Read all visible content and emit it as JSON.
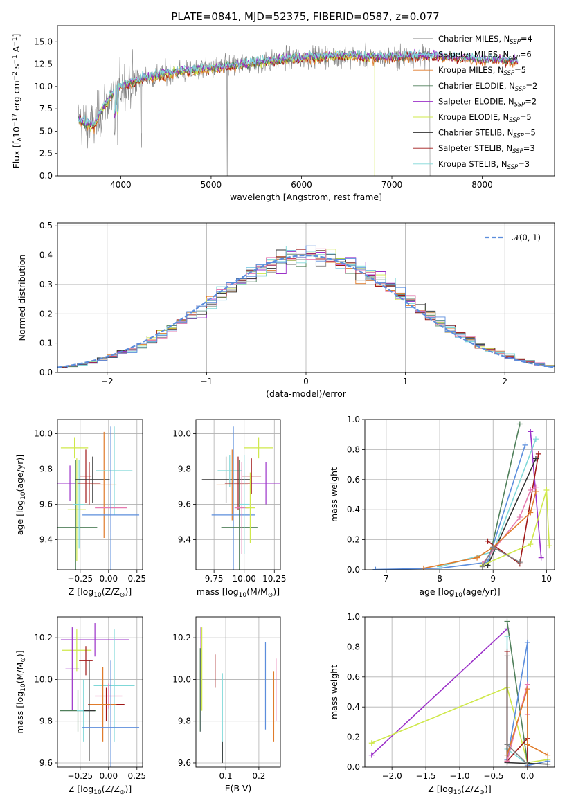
{
  "title": "PLATE=0841, MJD=52375, FIBERID=0587, z=0.077",
  "colors": {
    "chabrier_miles": "#808080",
    "salpeter_miles": "#7ec8e3",
    "kroupa_miles": "#e07b2a",
    "chabrier_elodie": "#4f7f5a",
    "salpeter_elodie": "#9b30c8",
    "kroupa_elodie": "#cfe84a",
    "chabrier_stelib": "#333333",
    "salpeter_stelib": "#a01818",
    "kroupa_stelib": "#7fd8d8",
    "pink": "#e67ab0",
    "blue": "#5b8ddc",
    "normal": "#5b8ddc"
  },
  "chart_data": [
    {
      "id": "spectrum",
      "type": "line",
      "xlabel": "wavelength [Angstrom, rest frame]",
      "ylabel": "Flux [f_λ 10^-17 erg cm^-2 s^-1 A^-1]",
      "xlim": [
        3300,
        8800
      ],
      "ylim": [
        0,
        16.8
      ],
      "xticks": [
        4000,
        5000,
        6000,
        7000,
        8000
      ],
      "yticks": [
        0.0,
        2.5,
        5.0,
        7.5,
        10.0,
        12.5,
        15.0
      ],
      "grid": false,
      "legend_position": "top-right",
      "continuum": [
        [
          3530,
          6.2
        ],
        [
          3700,
          5.5
        ],
        [
          3800,
          7.5
        ],
        [
          3900,
          9.0
        ],
        [
          4000,
          10.0
        ],
        [
          4300,
          11.0
        ],
        [
          4600,
          11.6
        ],
        [
          5000,
          12.0
        ],
        [
          5500,
          12.6
        ],
        [
          6000,
          13.2
        ],
        [
          6500,
          13.4
        ],
        [
          6800,
          13.2
        ],
        [
          7000,
          13.3
        ],
        [
          7400,
          13.4
        ],
        [
          7600,
          13.2
        ],
        [
          8000,
          13.0
        ],
        [
          8400,
          12.8
        ]
      ],
      "series": [
        {
          "name_main": "Chabrier MILES, N",
          "name_sub": "SSP",
          "name_suffix": "=4",
          "color_key": "chabrier_miles"
        },
        {
          "name_main": "Salpeter MILES, N",
          "name_sub": "SSP",
          "name_suffix": "=6",
          "color_key": "salpeter_miles"
        },
        {
          "name_main": "Kroupa MILES, N",
          "name_sub": "SSP",
          "name_suffix": "=5",
          "color_key": "kroupa_miles"
        },
        {
          "name_main": "Chabrier ELODIE, N",
          "name_sub": "SSP",
          "name_suffix": "=2",
          "color_key": "chabrier_elodie"
        },
        {
          "name_main": "Salpeter ELODIE, N",
          "name_sub": "SSP",
          "name_suffix": "=2",
          "color_key": "salpeter_elodie"
        },
        {
          "name_main": "Kroupa ELODIE, N",
          "name_sub": "SSP",
          "name_suffix": "=5",
          "color_key": "kroupa_elodie"
        },
        {
          "name_main": "Chabrier STELIB, N",
          "name_sub": "SSP",
          "name_suffix": "=5",
          "color_key": "chabrier_stelib"
        },
        {
          "name_main": "Salpeter STELIB, N",
          "name_sub": "SSP",
          "name_suffix": "=3",
          "color_key": "salpeter_stelib"
        },
        {
          "name_main": "Kroupa STELIB, N",
          "name_sub": "SSP",
          "name_suffix": "=3",
          "color_key": "kroupa_stelib"
        }
      ]
    },
    {
      "id": "residuals",
      "type": "line",
      "xlabel": "(data-model)/error",
      "ylabel": "Normed distribution",
      "xlim": [
        -2.5,
        2.5
      ],
      "ylim": [
        0,
        0.51
      ],
      "xticks": [
        -2,
        -1,
        0,
        1,
        2
      ],
      "yticks": [
        0.0,
        0.1,
        0.2,
        0.3,
        0.4,
        0.5
      ],
      "grid": true,
      "legend_position": "top-right",
      "legend_label": "𝒩(0, 1)",
      "bin_width": 0.1,
      "series_colors": [
        "chabrier_miles",
        "salpeter_miles",
        "kroupa_miles",
        "chabrier_elodie",
        "salpeter_elodie",
        "kroupa_elodie",
        "chabrier_stelib",
        "salpeter_stelib",
        "kroupa_stelib",
        "pink",
        "blue"
      ]
    },
    {
      "id": "age_vs_Z",
      "type": "scatter",
      "xlabel_pre": "Z [log",
      "xlabel_sub": "10",
      "xlabel_post": "(Z/Z",
      "xlabel_end": ")]",
      "ylabel_pre": "age  [log",
      "ylabel_sub": "10",
      "ylabel_post": "(age/yr)]",
      "xlim": [
        -0.45,
        0.3
      ],
      "ylim": [
        9.23,
        10.08
      ],
      "xticks": [
        -0.25,
        0.0,
        0.25
      ],
      "xtick_labels": [
        "−0.25",
        "0.00",
        "0.25"
      ],
      "yticks": [
        9.4,
        9.6,
        9.8,
        10.0
      ],
      "grid": true,
      "points": [
        {
          "x": -0.3,
          "y": 9.92,
          "xerr": 0.12,
          "yerr": 0.06,
          "color_key": "kroupa_elodie"
        },
        {
          "x": -0.34,
          "y": 9.72,
          "xerr": 0.22,
          "yerr": 0.1,
          "color_key": "salpeter_elodie"
        },
        {
          "x": -0.28,
          "y": 9.57,
          "xerr": 0.08,
          "yerr": 0.29,
          "color_key": "kroupa_elodie"
        },
        {
          "x": -0.29,
          "y": 9.47,
          "xerr": 0.19,
          "yerr": 0.38,
          "color_key": "chabrier_elodie"
        },
        {
          "x": -0.26,
          "y": 9.6,
          "xerr": 0.05,
          "yerr": 0.25,
          "color_key": "kroupa_stelib"
        },
        {
          "x": -0.2,
          "y": 9.76,
          "xerr": 0.05,
          "yerr": 0.15,
          "color_key": "salpeter_stelib"
        },
        {
          "x": -0.14,
          "y": 9.74,
          "xerr": 0.15,
          "yerr": 0.13,
          "color_key": "chabrier_stelib"
        },
        {
          "x": -0.17,
          "y": 9.72,
          "xerr": 0.1,
          "yerr": 0.12,
          "color_key": "salpeter_stelib"
        },
        {
          "x": -0.04,
          "y": 9.71,
          "xerr": 0.11,
          "yerr": 0.3,
          "color_key": "kroupa_miles"
        },
        {
          "x": 0.05,
          "y": 9.79,
          "xerr": 0.16,
          "yerr": 0.25,
          "color_key": "kroupa_stelib"
        },
        {
          "x": 0.02,
          "y": 9.58,
          "xerr": 0.14,
          "yerr": 0.14,
          "color_key": "pink"
        },
        {
          "x": 0.02,
          "y": 9.54,
          "xerr": 0.25,
          "yerr": 0.5,
          "color_key": "blue"
        }
      ]
    },
    {
      "id": "age_vs_mass",
      "type": "scatter",
      "xlabel_pre": "mass [log",
      "xlabel_sub": "10",
      "xlabel_post": "(M/M",
      "xlabel_end": ")]",
      "xlim": [
        9.6,
        10.3
      ],
      "ylim": [
        9.23,
        10.08
      ],
      "xticks": [
        9.75,
        10.0,
        10.25
      ],
      "xtick_labels": [
        "9.75",
        "10.00",
        "10.25"
      ],
      "yticks": [
        9.4,
        9.6,
        9.8,
        10.0
      ],
      "grid": true,
      "points": [
        {
          "x": 10.12,
          "y": 9.92,
          "xerr": 0.12,
          "yerr": 0.06,
          "color_key": "kroupa_elodie"
        },
        {
          "x": 10.18,
          "y": 9.72,
          "xerr": 0.12,
          "yerr": 0.12,
          "color_key": "salpeter_elodie"
        },
        {
          "x": 9.85,
          "y": 9.74,
          "xerr": 0.2,
          "yerr": 0.13,
          "color_key": "chabrier_stelib"
        },
        {
          "x": 9.88,
          "y": 9.79,
          "xerr": 0.1,
          "yerr": 0.09,
          "color_key": "kroupa_stelib"
        },
        {
          "x": 9.9,
          "y": 9.71,
          "xerr": 0.13,
          "yerr": 0.2,
          "color_key": "kroupa_miles"
        },
        {
          "x": 9.95,
          "y": 9.72,
          "xerr": 0.11,
          "yerr": 0.15,
          "color_key": "salpeter_stelib"
        },
        {
          "x": 9.91,
          "y": 9.54,
          "xerr": 0.18,
          "yerr": 0.5,
          "color_key": "blue"
        },
        {
          "x": 9.96,
          "y": 9.47,
          "xerr": 0.15,
          "yerr": 0.38,
          "color_key": "chabrier_elodie"
        },
        {
          "x": 10.06,
          "y": 9.76,
          "xerr": 0.08,
          "yerr": 0.1,
          "color_key": "salpeter_stelib"
        },
        {
          "x": 9.98,
          "y": 9.58,
          "xerr": 0.06,
          "yerr": 0.26,
          "color_key": "pink"
        },
        {
          "x": 10.0,
          "y": 9.6,
          "xerr": 0.04,
          "yerr": 0.28,
          "color_key": "kroupa_stelib"
        },
        {
          "x": 10.05,
          "y": 9.58,
          "xerr": 0.04,
          "yerr": 0.2,
          "color_key": "kroupa_elodie"
        }
      ]
    },
    {
      "id": "weight_vs_age",
      "type": "line",
      "xlabel_pre": "age  [log",
      "xlabel_sub": "10",
      "xlabel_post": "(age/yr)]",
      "ylabel": "mass weight",
      "xlim": [
        6.6,
        10.15
      ],
      "ylim": [
        0,
        1.0
      ],
      "xticks": [
        7,
        8,
        9,
        10
      ],
      "yticks": [
        0.0,
        0.2,
        0.4,
        0.6,
        0.8,
        1.0
      ],
      "grid": true,
      "series": [
        {
          "color_key": "chabrier_elodie",
          "x": [
            8.9,
            9.5
          ],
          "y": [
            0.03,
            0.97
          ]
        },
        {
          "color_key": "blue",
          "x": [
            6.8,
            8.0,
            8.9,
            9.6
          ],
          "y": [
            0.002,
            0.01,
            0.05,
            0.83
          ]
        },
        {
          "color_key": "kroupa_stelib",
          "x": [
            8.0,
            9.0,
            9.8
          ],
          "y": [
            0.02,
            0.12,
            0.87
          ]
        },
        {
          "color_key": "salpeter_elodie",
          "x": [
            9.7,
            9.9
          ],
          "y": [
            0.92,
            0.08
          ]
        },
        {
          "color_key": "salpeter_stelib",
          "x": [
            8.9,
            9.5,
            9.85
          ],
          "y": [
            0.19,
            0.04,
            0.77
          ]
        },
        {
          "color_key": "chabrier_stelib",
          "x": [
            8.9,
            9.8
          ],
          "y": [
            0.03,
            0.74
          ]
        },
        {
          "color_key": "pink",
          "x": [
            8.8,
            9.5,
            9.7,
            9.8
          ],
          "y": [
            0.04,
            0.35,
            0.53,
            0.55
          ]
        },
        {
          "color_key": "kroupa_miles",
          "x": [
            7.7,
            8.7,
            9.0,
            9.7,
            9.8
          ],
          "y": [
            0.01,
            0.08,
            0.15,
            0.38,
            0.52
          ]
        },
        {
          "color_key": "kroupa_elodie",
          "x": [
            8.8,
            9.7,
            10.0,
            10.05
          ],
          "y": [
            0.03,
            0.17,
            0.53,
            0.16
          ]
        },
        {
          "color_key": "chabrier_miles",
          "x": [
            8.8,
            9.0,
            9.5
          ],
          "y": [
            0.02,
            0.15,
            0.05
          ]
        }
      ]
    },
    {
      "id": "mass_vs_Z",
      "type": "scatter",
      "xlabel_pre": "Z [log",
      "xlabel_sub": "10",
      "xlabel_post": "(Z/Z",
      "xlabel_end": ")]",
      "ylabel_pre": "mass [log",
      "ylabel_sub": "10",
      "ylabel_post": "(M/M",
      "ylabel_end": ")]",
      "xlim": [
        -0.45,
        0.3
      ],
      "ylim": [
        9.58,
        10.3
      ],
      "xticks": [
        -0.25,
        0.0,
        0.25
      ],
      "xtick_labels": [
        "−0.25",
        "0.00",
        "0.25"
      ],
      "yticks": [
        9.6,
        9.8,
        10.0,
        10.2
      ],
      "grid": true,
      "points": [
        {
          "x": -0.12,
          "y": 10.19,
          "xerr": 0.3,
          "yerr": 0.08,
          "color_key": "salpeter_elodie"
        },
        {
          "x": -0.28,
          "y": 10.14,
          "xerr": 0.13,
          "yerr": 0.1,
          "color_key": "kroupa_elodie"
        },
        {
          "x": -0.32,
          "y": 10.05,
          "xerr": 0.06,
          "yerr": 0.2,
          "color_key": "salpeter_elodie"
        },
        {
          "x": -0.2,
          "y": 10.09,
          "xerr": 0.06,
          "yerr": 0.07,
          "color_key": "salpeter_stelib"
        },
        {
          "x": 0.05,
          "y": 9.97,
          "xerr": 0.18,
          "yerr": 0.27,
          "color_key": "kroupa_stelib"
        },
        {
          "x": 0.0,
          "y": 9.92,
          "xerr": 0.12,
          "yerr": 0.06,
          "color_key": "pink"
        },
        {
          "x": -0.02,
          "y": 9.88,
          "xerr": 0.16,
          "yerr": 0.08,
          "color_key": "salpeter_stelib"
        },
        {
          "x": -0.05,
          "y": 9.88,
          "xerr": 0.12,
          "yerr": 0.18,
          "color_key": "kroupa_miles"
        },
        {
          "x": -0.27,
          "y": 9.85,
          "xerr": 0.16,
          "yerr": 0.1,
          "color_key": "chabrier_elodie"
        },
        {
          "x": -0.22,
          "y": 9.85,
          "xerr": 0.06,
          "yerr": 0.15,
          "color_key": "kroupa_stelib"
        },
        {
          "x": -0.17,
          "y": 9.85,
          "xerr": 0.05,
          "yerr": 0.24,
          "color_key": "chabrier_stelib"
        },
        {
          "x": 0.02,
          "y": 9.77,
          "xerr": 0.25,
          "yerr": 0.32,
          "color_key": "blue"
        }
      ]
    },
    {
      "id": "mass_vs_ebv",
      "type": "scatter",
      "xlabel": "E(B-V)",
      "xlim": [
        0.01,
        0.265
      ],
      "ylim": [
        9.58,
        10.3
      ],
      "xticks": [
        0.1,
        0.2
      ],
      "xtick_labels": [
        "0.1",
        "0.2"
      ],
      "yticks": [
        9.6,
        9.8,
        10.0,
        10.2
      ],
      "grid": true,
      "points": [
        {
          "x": 0.025,
          "y": 10.0,
          "yerr": 0.25,
          "color_key": "salpeter_elodie"
        },
        {
          "x": 0.023,
          "y": 9.95,
          "yerr": 0.2,
          "color_key": "chabrier_elodie"
        },
        {
          "x": 0.028,
          "y": 10.05,
          "yerr": 0.2,
          "color_key": "kroupa_elodie"
        },
        {
          "x": 0.068,
          "y": 10.04,
          "yerr": 0.08,
          "color_key": "salpeter_stelib"
        },
        {
          "x": 0.09,
          "y": 9.82,
          "yerr": 0.21,
          "color_key": "kroupa_stelib"
        },
        {
          "x": 0.09,
          "y": 9.65,
          "yerr": 0.05,
          "color_key": "chabrier_stelib"
        },
        {
          "x": 0.22,
          "y": 9.97,
          "yerr": 0.21,
          "color_key": "blue"
        },
        {
          "x": 0.245,
          "y": 9.87,
          "yerr": 0.17,
          "color_key": "kroupa_miles"
        },
        {
          "x": 0.252,
          "y": 9.95,
          "yerr": 0.15,
          "color_key": "pink"
        }
      ]
    },
    {
      "id": "weight_vs_Z",
      "type": "line",
      "xlabel_pre": "Z [log",
      "xlabel_sub": "10",
      "xlabel_post": "(Z/Z",
      "xlabel_end": ")]",
      "ylabel": "mass weight",
      "xlim": [
        -2.4,
        0.4
      ],
      "ylim": [
        0,
        1.0
      ],
      "xticks": [
        -2.0,
        -1.5,
        -1.0,
        -0.5,
        0.0
      ],
      "xtick_labels": [
        "−2.0",
        "−1.5",
        "−1.0",
        "−0.5",
        "0.0"
      ],
      "yticks": [
        0.0,
        0.2,
        0.4,
        0.6,
        0.8,
        1.0
      ],
      "grid": true,
      "series": [
        {
          "color_key": "salpeter_elodie",
          "x": [
            -2.3,
            -0.3
          ],
          "y": [
            0.08,
            0.92
          ]
        },
        {
          "color_key": "kroupa_elodie",
          "x": [
            -2.3,
            -0.3,
            0.0,
            0.3
          ],
          "y": [
            0.16,
            0.53,
            0.03,
            0.05
          ]
        },
        {
          "color_key": "chabrier_elodie",
          "x": [
            -0.3,
            0.0
          ],
          "y": [
            0.97,
            0.03
          ]
        },
        {
          "color_key": "kroupa_stelib",
          "x": [
            -0.3,
            -0.3,
            0.0
          ],
          "y": [
            0.87,
            0.12,
            0.02
          ]
        },
        {
          "color_key": "blue",
          "x": [
            -0.3,
            0.0,
            0.0,
            0.3
          ],
          "y": [
            0.05,
            0.83,
            0.01,
            0.04
          ]
        },
        {
          "color_key": "salpeter_stelib",
          "x": [
            -0.3,
            -0.3,
            0.0,
            0.0
          ],
          "y": [
            0.77,
            0.04,
            0.19,
            0.0
          ]
        },
        {
          "color_key": "chabrier_stelib",
          "x": [
            -0.3,
            -0.3,
            0.3
          ],
          "y": [
            0.74,
            0.03,
            0.02
          ]
        },
        {
          "color_key": "pink",
          "x": [
            -0.3,
            0.0,
            0.0
          ],
          "y": [
            0.04,
            0.55,
            0.35
          ]
        },
        {
          "color_key": "kroupa_miles",
          "x": [
            -0.3,
            0.0,
            0.0,
            0.3
          ],
          "y": [
            0.08,
            0.52,
            0.15,
            0.08
          ]
        },
        {
          "color_key": "chabrier_miles",
          "x": [
            -0.3,
            0.0
          ],
          "y": [
            0.15,
            0.02
          ]
        }
      ]
    }
  ]
}
